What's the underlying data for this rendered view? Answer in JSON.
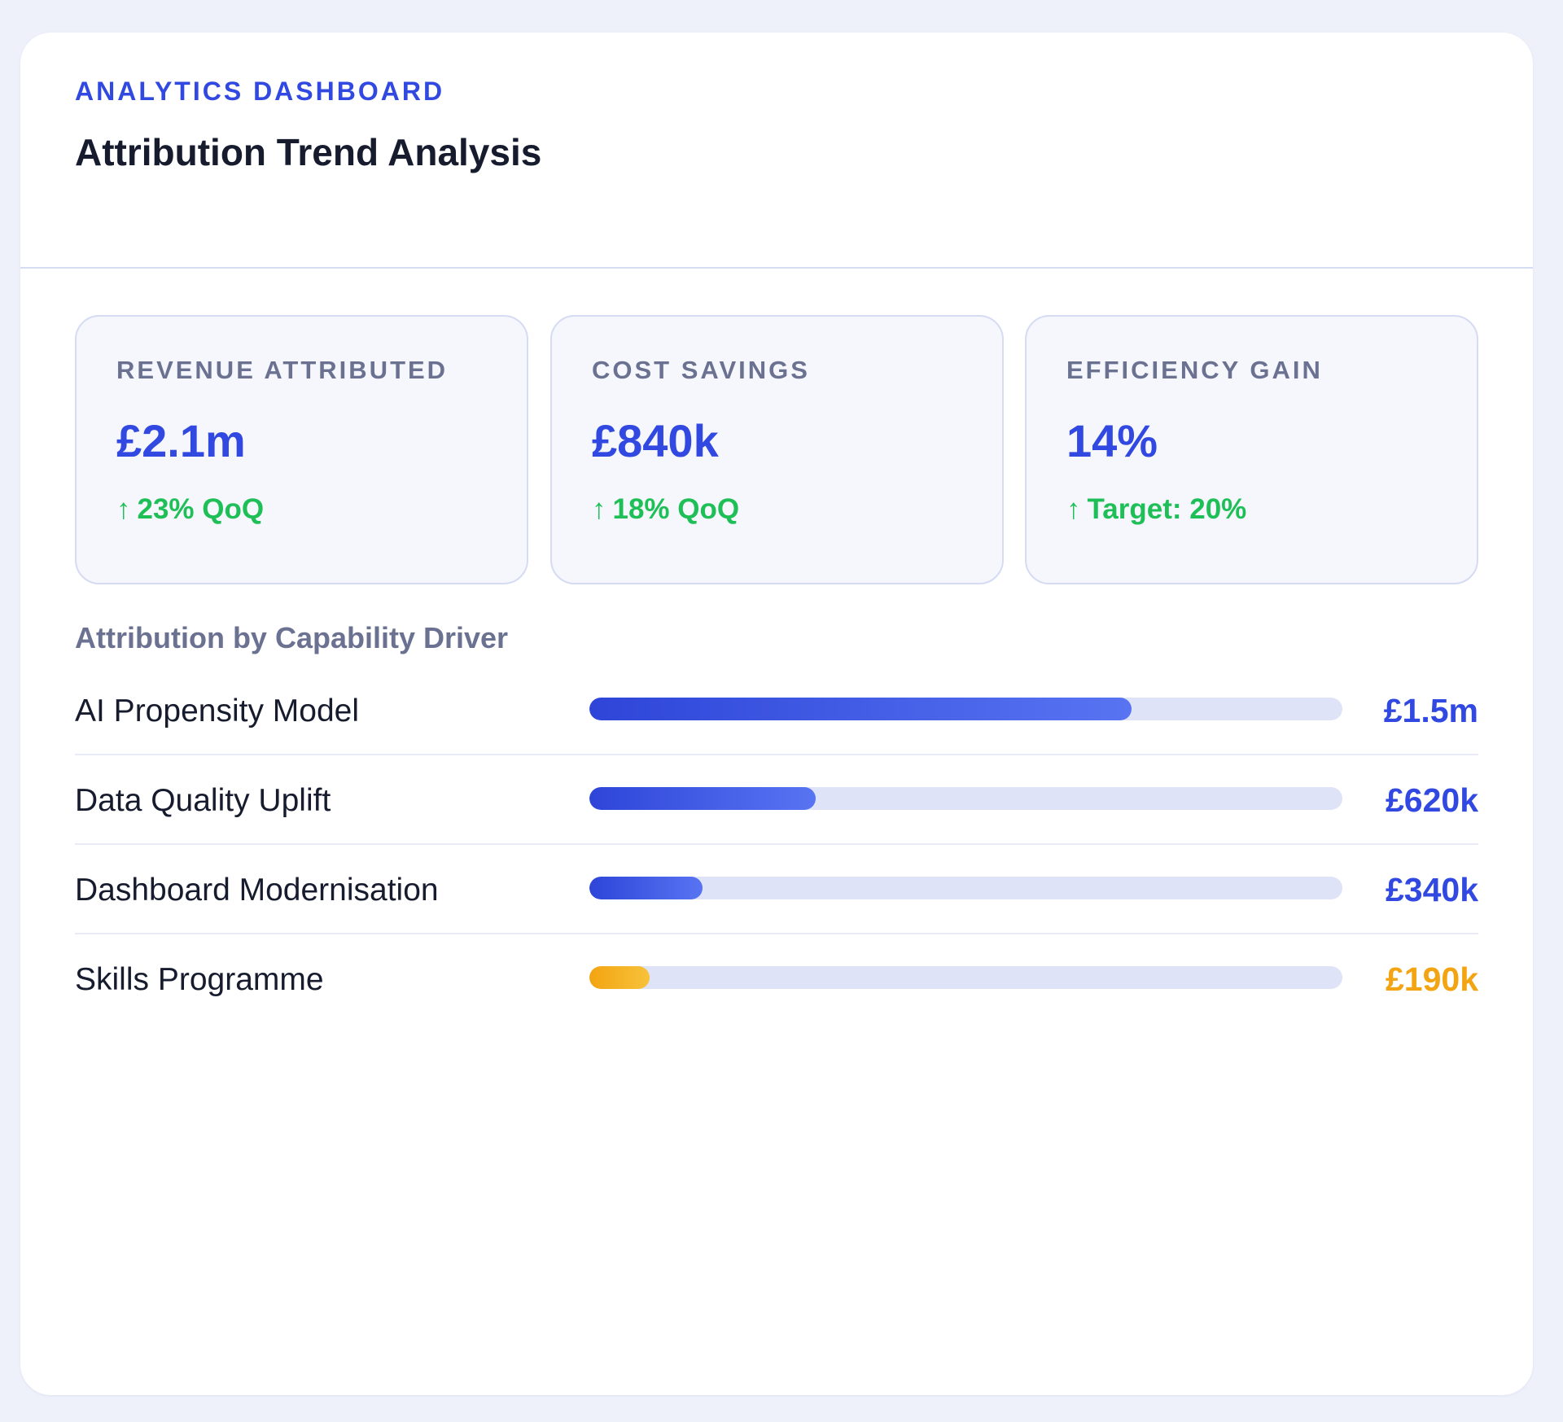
{
  "header": {
    "eyebrow": "ANALYTICS DASHBOARD",
    "title": "Attribution Trend Analysis"
  },
  "kpis": [
    {
      "label": "REVENUE ATTRIBUTED",
      "value": "£2.1m",
      "delta_arrow": "↑",
      "delta": "23% QoQ"
    },
    {
      "label": "COST SAVINGS",
      "value": "£840k",
      "delta_arrow": "↑",
      "delta": "18% QoQ"
    },
    {
      "label": "EFFICIENCY GAIN",
      "value": "14%",
      "delta_arrow": "↑",
      "delta": "Target: 20%"
    }
  ],
  "drivers_section": {
    "title": "Attribution by Capability Driver",
    "items": [
      {
        "name": "AI Propensity Model",
        "value": "£1.5m",
        "fill_fraction": 0.72,
        "accent": false
      },
      {
        "name": "Data Quality Uplift",
        "value": "£620k",
        "fill_fraction": 0.3,
        "accent": false
      },
      {
        "name": "Dashboard Modernisation",
        "value": "£340k",
        "fill_fraction": 0.15,
        "accent": false
      },
      {
        "name": "Skills Programme",
        "value": "£190k",
        "fill_fraction": 0.08,
        "accent": true
      }
    ]
  },
  "colors": {
    "primary": "#3149e0",
    "positive": "#1fbf58",
    "accent": "#f3a412",
    "track": "#dfe3f8",
    "text_dark": "#161b2e",
    "text_muted": "#6b7291"
  },
  "icons": {
    "delta": "arrow-up-icon"
  }
}
